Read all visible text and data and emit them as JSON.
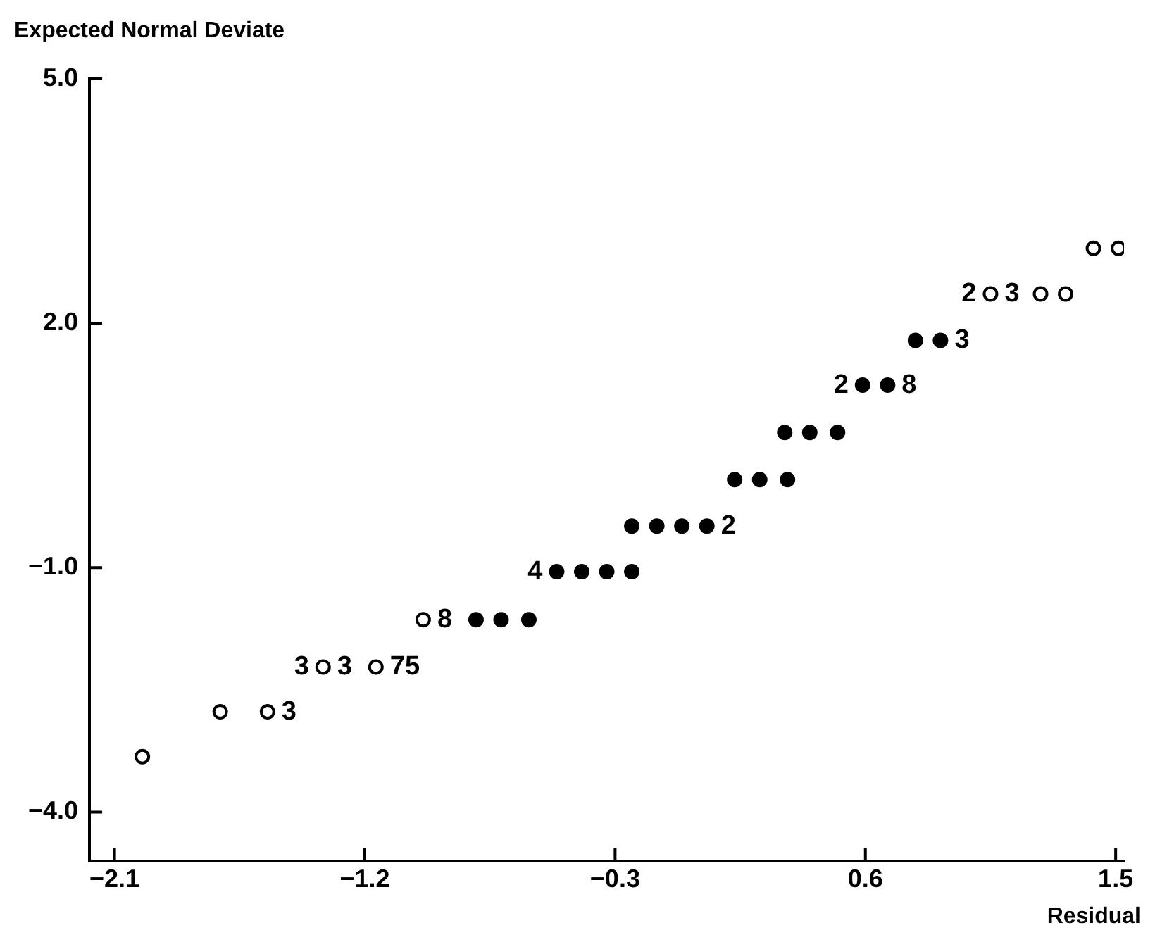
{
  "chart_data": {
    "type": "scatter",
    "xlabel": "Residual",
    "ylabel": "Expected Normal Deviate",
    "series": [
      {
        "color": "#000000",
        "x": [
          -2.0,
          -1.72,
          -1.55,
          -1.35,
          -1.16,
          -0.99,
          1.05,
          1.23,
          1.32,
          1.42,
          1.51
        ],
        "values": [
          -3.32,
          -2.77,
          -2.77,
          -2.22,
          -2.22,
          -1.64,
          2.36,
          2.36,
          2.36,
          2.92,
          2.92
        ]
      },
      {
        "color": "#000000",
        "x": [
          -0.8,
          -0.71,
          -0.61,
          -0.51,
          -0.42,
          -0.33,
          -0.24,
          -0.24,
          -0.15,
          -0.06,
          0.03,
          0.13,
          0.22,
          0.32,
          0.31,
          0.4,
          0.5,
          0.59,
          0.68,
          0.78,
          0.87
        ],
        "values": [
          -1.64,
          -1.64,
          -1.64,
          -1.05,
          -1.05,
          -1.05,
          -1.05,
          -0.49,
          -0.49,
          -0.49,
          -0.49,
          0.08,
          0.08,
          0.08,
          0.66,
          0.66,
          0.66,
          1.24,
          1.24,
          1.79,
          1.79
        ]
      }
    ],
    "annotations": [
      {
        "text": "3",
        "x": -1.55,
        "y": -2.77
      },
      {
        "text": "3",
        "x": -1.35,
        "y": -2.22
      },
      {
        "text": "3",
        "x": -1.35,
        "y": -2.22
      },
      {
        "text": "75",
        "x": -1.16,
        "y": -2.22
      },
      {
        "text": "8",
        "x": -0.99,
        "y": -1.64
      },
      {
        "text": "4",
        "x": -0.51,
        "y": -1.05
      },
      {
        "text": "2",
        "x": 0.03,
        "y": -0.49
      },
      {
        "text": "2",
        "x": 0.59,
        "y": 1.24
      },
      {
        "text": "8",
        "x": 0.68,
        "y": 1.24
      },
      {
        "text": "3",
        "x": 0.87,
        "y": 1.79
      },
      {
        "text": "2",
        "x": 1.05,
        "y": 2.36
      },
      {
        "text": "3",
        "x": 1.05,
        "y": 2.36
      }
    ],
    "xlim": [
      -2.19,
      1.53
    ],
    "ylim": [
      -4.6,
      5.0
    ],
    "xticks": [
      {
        "value": -2.1,
        "label": "−2.1"
      },
      {
        "value": -1.2,
        "label": "−1.2"
      },
      {
        "value": -0.3,
        "label": "−0.3"
      },
      {
        "value": 0.6,
        "label": "0.6"
      },
      {
        "value": 1.5,
        "label": "1.5"
      }
    ],
    "yticks": [
      {
        "value": 5.0,
        "label": "5.0"
      },
      {
        "value": 2.0,
        "label": "2.0"
      },
      {
        "value": -1.0,
        "label": "−1.0"
      },
      {
        "value": -4.0,
        "label": "−4.0"
      }
    ],
    "grid": false,
    "legend": false,
    "marker": "circle"
  }
}
